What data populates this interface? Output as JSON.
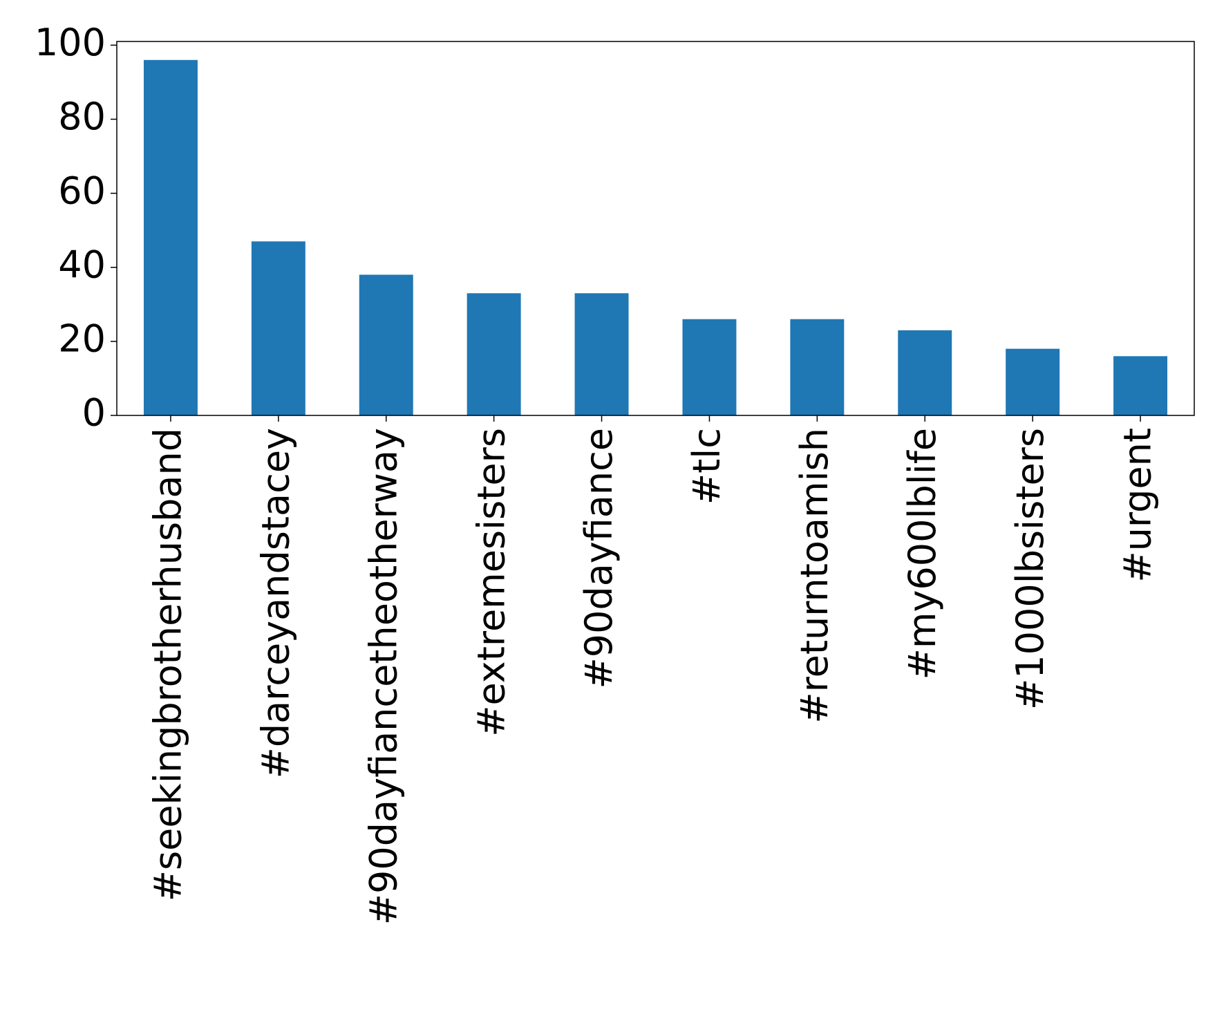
{
  "chart_data": {
    "type": "bar",
    "categories": [
      "#seekingbrotherhusband",
      "#darceyandstacey",
      "#90dayfiancetheotherway",
      "#extremesisters",
      "#90dayfiance",
      "#tlc",
      "#returntoamish",
      "#my600lblife",
      "#1000lbsisters",
      "#urgent"
    ],
    "values": [
      96,
      47,
      38,
      33,
      33,
      26,
      26,
      23,
      18,
      16
    ],
    "color": "#1f77b4",
    "ylim": [
      0,
      101
    ],
    "yticks": [
      0,
      20,
      40,
      60,
      80,
      100
    ],
    "grid": false
  }
}
